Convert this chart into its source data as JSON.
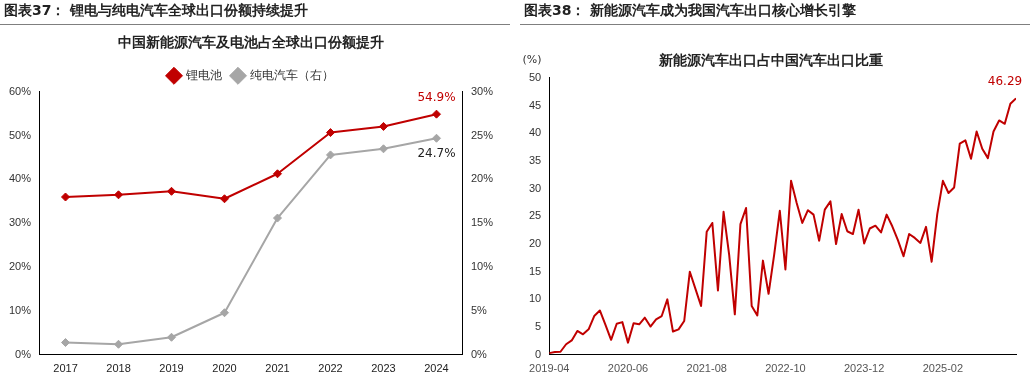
{
  "chart_data": [
    {
      "type": "line",
      "title": "图表37： 锂电与纯电汽车全球出口份额持续提升",
      "subtitle": "中国新能源汽车及电池占全球出口份额提升",
      "categories": [
        "2017",
        "2018",
        "2019",
        "2020",
        "2021",
        "2022",
        "2023",
        "2024"
      ],
      "series": [
        {
          "name": "锂电池",
          "color": "#c00000",
          "values": [
            36.0,
            36.5,
            37.3,
            35.6,
            41.3,
            50.7,
            52.1,
            54.9
          ],
          "value_labels": [
            null,
            null,
            null,
            null,
            null,
            null,
            null,
            "54.9%"
          ],
          "marker": "diamond"
        },
        {
          "name": "纯电汽车（右）",
          "color": "#a6a6a6",
          "axis": "y2",
          "values": [
            1.4,
            1.2,
            2.0,
            4.8,
            15.6,
            22.8,
            23.5,
            24.7
          ],
          "value_labels": [
            null,
            null,
            null,
            null,
            null,
            null,
            null,
            "24.7%"
          ],
          "marker": "diamond"
        }
      ],
      "ylim": [
        0,
        60
      ],
      "yticks": [
        {
          "value": 0,
          "label": "0%"
        },
        {
          "value": 10,
          "label": "10%"
        },
        {
          "value": 20,
          "label": "20%"
        },
        {
          "value": 30,
          "label": "30%"
        },
        {
          "value": 40,
          "label": "40%"
        },
        {
          "value": 50,
          "label": "50%"
        },
        {
          "value": 60,
          "label": "60%"
        }
      ],
      "y2lim": [
        0,
        30
      ],
      "y2ticks": [
        {
          "value": 0,
          "label": "0%"
        },
        {
          "value": 5,
          "label": "5%"
        },
        {
          "value": 10,
          "label": "10%"
        },
        {
          "value": 15,
          "label": "15%"
        },
        {
          "value": 20,
          "label": "20%"
        },
        {
          "value": 25,
          "label": "25%"
        },
        {
          "value": 30,
          "label": "30%"
        }
      ],
      "grid": false,
      "legend": "top"
    },
    {
      "type": "line",
      "title": "图表38： 新能源汽车成为我国汽车出口核心增长引擎",
      "subtitle": "新能源汽车出口占中国汽车出口比重",
      "ylabel": "(%)",
      "x": [
        "2019-04",
        "2019-05",
        "2019-06",
        "2019-07",
        "2019-08",
        "2019-09",
        "2019-10",
        "2019-11",
        "2019-12",
        "2020-01",
        "2020-02",
        "2020-03",
        "2020-04",
        "2020-05",
        "2020-06",
        "2020-07",
        "2020-08",
        "2020-09",
        "2020-10",
        "2020-11",
        "2020-12",
        "2021-01",
        "2021-02",
        "2021-03",
        "2021-04",
        "2021-05",
        "2021-06",
        "2021-07",
        "2021-08",
        "2021-09",
        "2021-10",
        "2021-11",
        "2021-12",
        "2022-01",
        "2022-02",
        "2022-03",
        "2022-04",
        "2022-05",
        "2022-06",
        "2022-07",
        "2022-08",
        "2022-09",
        "2022-10",
        "2022-11",
        "2022-12",
        "2023-01",
        "2023-02",
        "2023-03",
        "2023-04",
        "2023-05",
        "2023-06",
        "2023-07",
        "2023-08",
        "2023-09",
        "2023-10",
        "2023-11",
        "2023-12",
        "2024-01",
        "2024-02",
        "2024-03",
        "2024-04",
        "2024-05",
        "2024-06",
        "2024-07",
        "2024-08",
        "2024-09",
        "2024-10",
        "2024-11",
        "2024-12",
        "2025-01",
        "2025-02",
        "2025-03",
        "2025-04",
        "2025-05",
        "2025-06",
        "2025-07",
        "2025-08",
        "2025-09",
        "2025-10",
        "2025-11",
        "2025-12",
        "2026-01",
        "2026-02",
        "2026-03"
      ],
      "series": [
        {
          "color": "#c00000",
          "values": [
            0.3,
            0.5,
            0.55,
            1.9,
            2.6,
            4.3,
            3.7,
            4.6,
            7.0,
            8.0,
            5.4,
            2.7,
            5.6,
            5.9,
            2.2,
            5.7,
            5.5,
            6.7,
            5.1,
            6.4,
            7.0,
            10.0,
            4.2,
            4.6,
            6.1,
            15.0,
            11.9,
            8.8,
            22.2,
            23.8,
            11.6,
            25.8,
            18.0,
            7.3,
            23.6,
            26.5,
            8.8,
            7.1,
            17.0,
            11.0,
            18.1,
            26.0,
            15.4,
            31.4,
            27.4,
            23.8,
            26.1,
            25.3,
            20.6,
            26.2,
            27.7,
            20.0,
            25.4,
            22.3,
            21.8,
            26.2,
            20.1,
            22.8,
            23.3,
            22.1,
            25.3,
            23.2,
            20.7,
            17.8,
            21.8,
            21.1,
            20.2,
            23.1,
            16.8,
            25.4,
            31.4,
            29.2,
            30.2,
            38.1,
            38.7,
            35.4,
            40.3,
            37.2,
            35.5,
            40.3,
            42.3,
            41.7,
            45.3,
            46.29
          ],
          "value_labels": [
            null,
            null,
            null,
            null,
            null,
            null,
            null,
            null,
            null,
            null,
            null,
            null,
            null,
            null,
            null,
            null,
            null,
            null,
            null,
            null,
            null,
            null,
            null,
            null,
            null,
            null,
            null,
            null,
            null,
            null,
            null,
            null,
            null,
            null,
            null,
            null,
            null,
            null,
            null,
            null,
            null,
            null,
            null,
            null,
            null,
            null,
            null,
            null,
            null,
            null,
            null,
            null,
            null,
            null,
            null,
            null,
            null,
            null,
            null,
            null,
            null,
            null,
            null,
            null,
            null,
            null,
            null,
            null,
            null,
            null,
            null,
            null,
            null,
            null,
            null,
            null,
            null,
            null,
            null,
            null,
            null,
            null,
            null,
            "46.29"
          ]
        }
      ],
      "xlim": [
        "2019-04",
        "2026-03"
      ],
      "xticks": [
        "2019-04",
        "2020-06",
        "2021-08",
        "2022-10",
        "2023-12",
        "2025-02"
      ],
      "ylim": [
        0,
        50
      ],
      "yticks": [
        0,
        5,
        10,
        15,
        20,
        25,
        30,
        35,
        40,
        45,
        50
      ],
      "grid": false,
      "legend": false,
      "marker": "none"
    }
  ]
}
